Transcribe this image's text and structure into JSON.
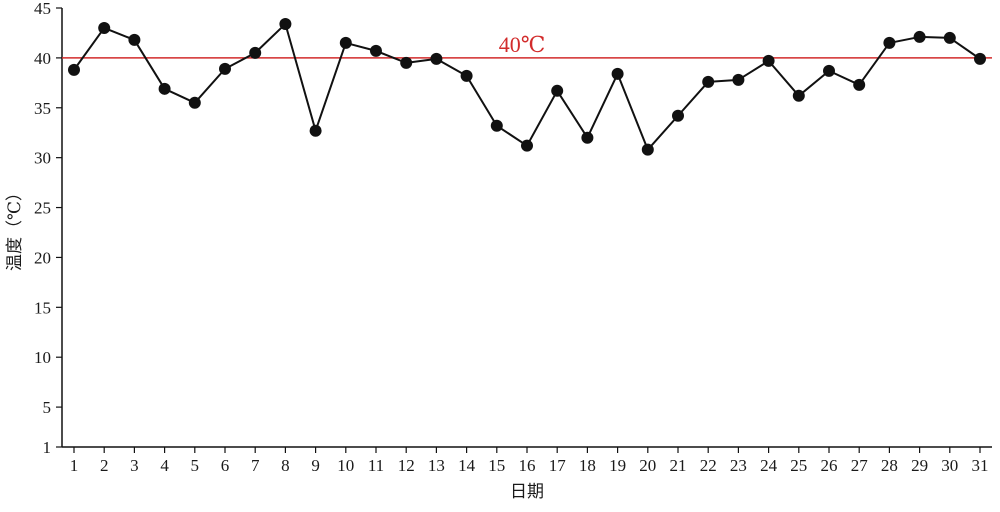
{
  "chart_data": {
    "type": "line",
    "xlabel": "日期",
    "ylabel": "温度（℃）",
    "x": [
      1,
      2,
      3,
      4,
      5,
      6,
      7,
      8,
      9,
      10,
      11,
      12,
      13,
      14,
      15,
      16,
      17,
      18,
      19,
      20,
      21,
      22,
      23,
      24,
      25,
      26,
      27,
      28,
      29,
      30,
      31
    ],
    "series": [
      {
        "values": [
          38.8,
          43.0,
          41.8,
          36.9,
          35.5,
          38.9,
          40.5,
          43.4,
          32.7,
          41.5,
          40.7,
          39.5,
          39.9,
          38.2,
          33.2,
          31.2,
          36.7,
          32.0,
          38.4,
          30.8,
          34.2,
          37.6,
          37.8,
          39.7,
          36.2,
          38.7,
          37.3,
          41.5,
          42.1,
          42.0,
          39.9
        ],
        "color": "#111111"
      }
    ],
    "reference_line": {
      "value": 40,
      "label": "40℃",
      "color": "#d22b2b"
    },
    "yticks": [
      1,
      5,
      10,
      15,
      20,
      25,
      30,
      35,
      40,
      45
    ],
    "ylim": [
      1,
      45
    ],
    "xlim": [
      1,
      31
    ],
    "grid": false
  }
}
